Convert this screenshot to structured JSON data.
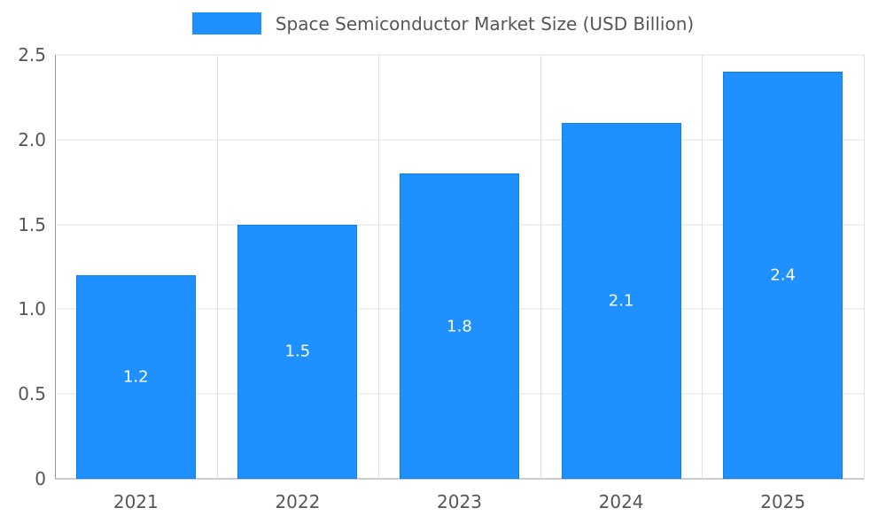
{
  "chart_data": {
    "type": "bar",
    "title": "Space Semiconductor Market Size (USD Billion)",
    "categories": [
      "2021",
      "2022",
      "2023",
      "2024",
      "2025"
    ],
    "values": [
      1.2,
      1.5,
      1.8,
      2.1,
      2.4
    ],
    "bar_labels": [
      "1.2",
      "1.5",
      "1.8",
      "2.1",
      "2.4"
    ],
    "xlabel": "",
    "ylabel": "",
    "ylim": [
      0,
      2.5
    ],
    "ytick_values": [
      0,
      0.5,
      1.0,
      1.5,
      2.0,
      2.5
    ],
    "ytick_labels": [
      "0",
      "0.5",
      "1.0",
      "1.5",
      "2.0",
      "2.5"
    ],
    "grid": true,
    "legend_position": "top-center",
    "colors": {
      "bar": "#1E90FF",
      "bar_border": "#0d7fe8",
      "bar_label_text": "#ffffff",
      "grid_line": "#e2e2e2",
      "axis_line": "#9a9a9a",
      "tick_text": "#565656",
      "title_text": "#565656",
      "background": "#ffffff"
    }
  }
}
